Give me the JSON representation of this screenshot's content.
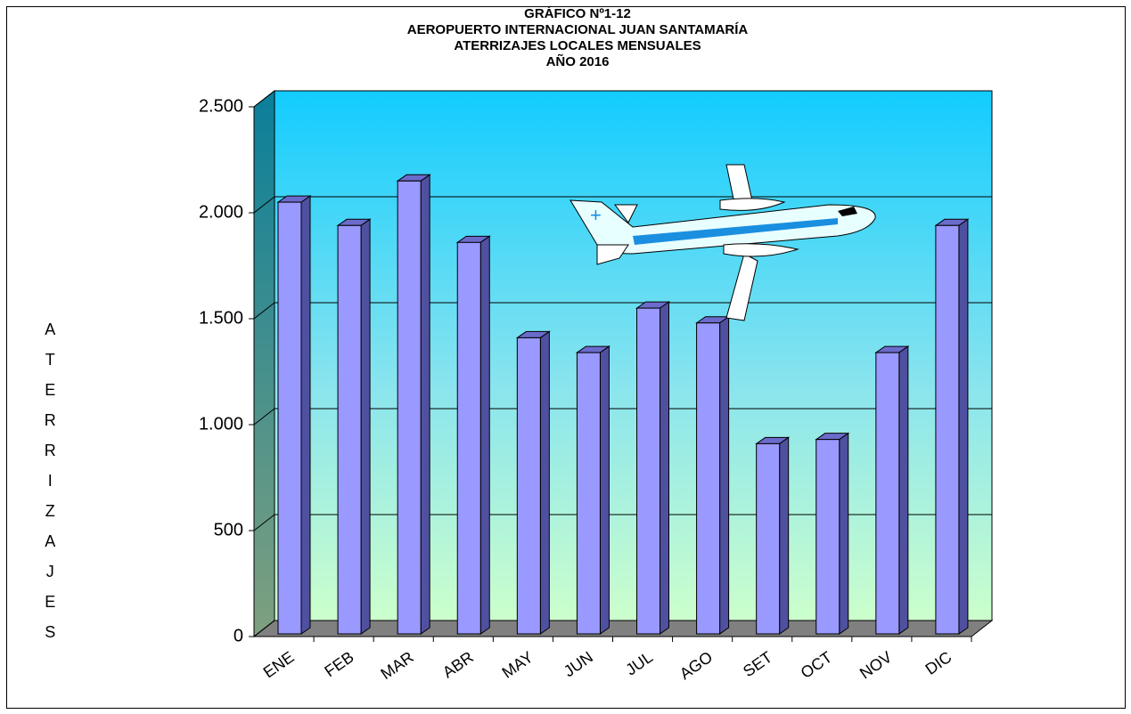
{
  "chart_data": {
    "type": "bar3d",
    "title": [
      "GRÁFICO Nº1-12",
      "AEROPUERTO INTERNACIONAL JUAN SANTAMARÍA",
      "ATERRIZAJES LOCALES MENSUALES",
      "AÑO 2016"
    ],
    "y_label": "ATERRIZAJES",
    "categories": [
      "ENE",
      "FEB",
      "MAR",
      "ABR",
      "MAY",
      "JUN",
      "JUL",
      "AGO",
      "SET",
      "OCT",
      "NOV",
      "DIC"
    ],
    "values": [
      2050,
      1940,
      2150,
      1860,
      1410,
      1340,
      1550,
      1480,
      910,
      930,
      1340,
      1940
    ],
    "color": "#9999ff",
    "ylim": [
      0,
      2500
    ],
    "yticks": [
      0,
      500,
      {
        "value": 1000,
        "label": "1.000"
      },
      {
        "value": 1500,
        "label": "1.500"
      },
      {
        "value": 2000,
        "label": "2.000"
      },
      {
        "value": 2500,
        "label": "2.500"
      }
    ],
    "grid": true
  }
}
